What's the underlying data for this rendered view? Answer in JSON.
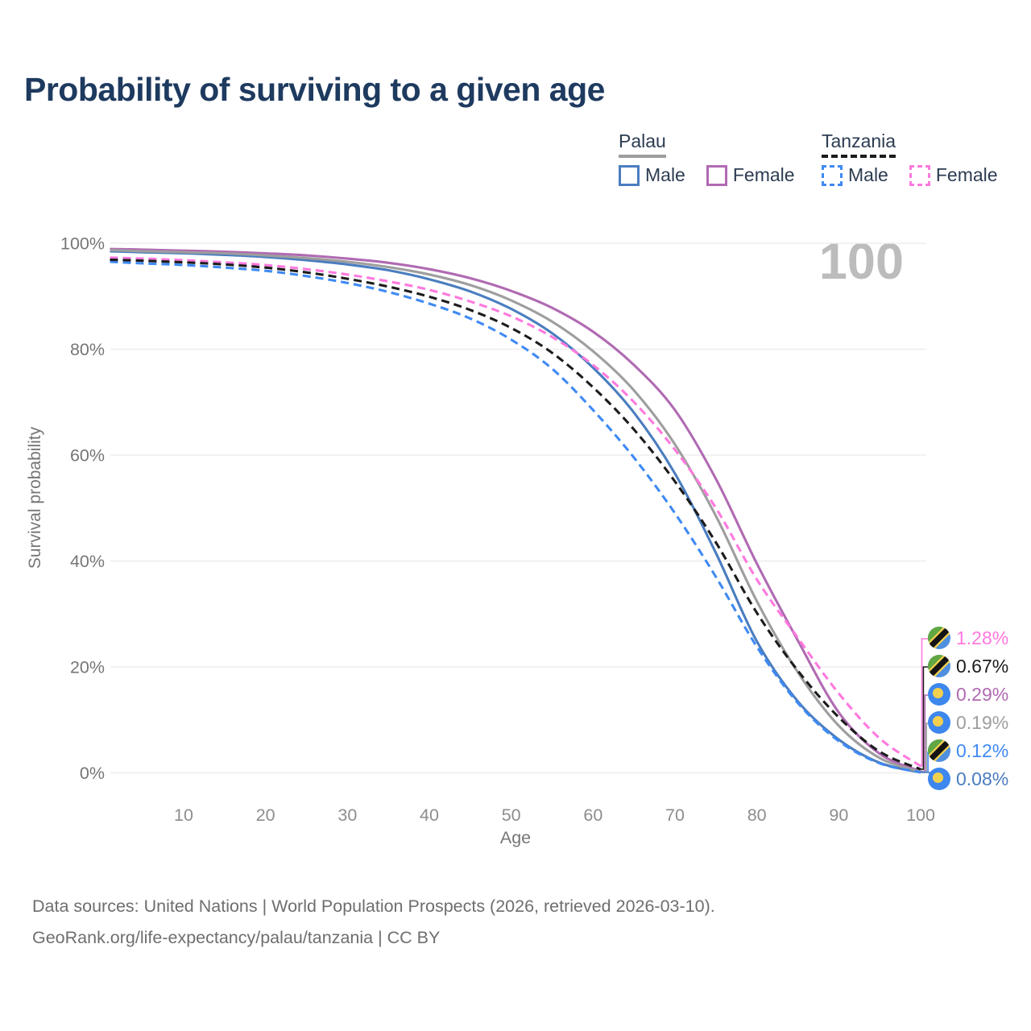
{
  "title": "Probability of surviving to a given age",
  "watermark": "100",
  "legend": {
    "groups": [
      {
        "name": "Palau",
        "line_style": "solid",
        "underline_color": "#9e9e9e",
        "items": [
          {
            "label": "Male",
            "color": "#4a7dbf"
          },
          {
            "label": "Female",
            "color": "#b06ab2"
          }
        ]
      },
      {
        "name": "Tanzania",
        "line_style": "dashed",
        "underline_color": "#1c1c1c",
        "items": [
          {
            "label": "Male",
            "color": "#3f8af3"
          },
          {
            "label": "Female",
            "color": "#ff79de"
          }
        ]
      }
    ]
  },
  "chart_data": {
    "type": "line",
    "title": "Probability of surviving to a given age",
    "xlabel": "Age",
    "ylabel": "Survival probability",
    "xlim": [
      1,
      100
    ],
    "ylim": [
      0,
      100
    ],
    "grid": "horizontal",
    "legend_position": "top-right",
    "xticks": [
      {
        "v": 10,
        "label": "10"
      },
      {
        "v": 20,
        "label": "20"
      },
      {
        "v": 30,
        "label": "30"
      },
      {
        "v": 40,
        "label": "40"
      },
      {
        "v": 50,
        "label": "50"
      },
      {
        "v": 60,
        "label": "60"
      },
      {
        "v": 70,
        "label": "70"
      },
      {
        "v": 80,
        "label": "80"
      },
      {
        "v": 90,
        "label": "90"
      },
      {
        "v": 100,
        "label": "100"
      }
    ],
    "yticks": [
      {
        "v": 0,
        "label": "0%"
      },
      {
        "v": 20,
        "label": "20%"
      },
      {
        "v": 40,
        "label": "40%"
      },
      {
        "v": 60,
        "label": "60%"
      },
      {
        "v": 80,
        "label": "80%"
      },
      {
        "v": 100,
        "label": "100%"
      }
    ],
    "x": [
      1,
      5,
      10,
      15,
      20,
      25,
      30,
      35,
      40,
      45,
      50,
      55,
      60,
      65,
      70,
      75,
      80,
      85,
      90,
      95,
      100
    ],
    "series": [
      {
        "name": "Palau Male",
        "country": "palau",
        "color": "#4a7dbf",
        "dash": false,
        "values": [
          98.5,
          98.3,
          98.1,
          97.8,
          97.4,
          96.8,
          96.0,
          94.9,
          93.2,
          90.9,
          87.6,
          83.0,
          76.5,
          68.0,
          56.5,
          41.5,
          24.8,
          13.5,
          6.3,
          1.9,
          0.08
        ]
      },
      {
        "name": "Palau Female",
        "country": "palau",
        "color": "#b06ab2",
        "dash": false,
        "values": [
          98.9,
          98.8,
          98.6,
          98.4,
          98.1,
          97.7,
          97.1,
          96.3,
          95.1,
          93.4,
          91.0,
          87.8,
          83.3,
          77.0,
          68.5,
          55.5,
          39.5,
          25.0,
          11.4,
          3.6,
          0.29
        ]
      },
      {
        "name": "Palau",
        "country": "palau",
        "color": "#9e9e9e",
        "dash": false,
        "values": [
          98.7,
          98.5,
          98.3,
          98.1,
          97.7,
          97.2,
          96.5,
          95.5,
          94.1,
          92.1,
          89.2,
          85.2,
          79.6,
          72.2,
          62.0,
          48.5,
          32.4,
          19.0,
          8.9,
          2.8,
          0.19
        ]
      },
      {
        "name": "Tanzania Male",
        "country": "tanzania",
        "color": "#3f8af3",
        "dash": true,
        "values": [
          96.5,
          96.2,
          95.9,
          95.4,
          94.8,
          93.8,
          92.5,
          90.8,
          88.6,
          85.8,
          81.8,
          76.3,
          68.5,
          59.5,
          49.0,
          37.0,
          23.8,
          13.2,
          6.0,
          1.8,
          0.12
        ]
      },
      {
        "name": "Tanzania Female",
        "country": "tanzania",
        "color": "#ff79de",
        "dash": true,
        "values": [
          97.3,
          97.1,
          96.8,
          96.4,
          95.9,
          95.1,
          94.1,
          92.8,
          91.2,
          89.0,
          86.2,
          82.3,
          77.0,
          70.0,
          61.0,
          50.0,
          36.5,
          25.5,
          15.0,
          6.5,
          1.28
        ]
      },
      {
        "name": "Tanzania",
        "country": "tanzania",
        "color": "#1c1c1c",
        "dash": true,
        "values": [
          96.9,
          96.7,
          96.4,
          96.0,
          95.4,
          94.5,
          93.3,
          91.8,
          89.9,
          87.4,
          84.0,
          79.3,
          72.8,
          64.8,
          55.0,
          43.5,
          30.2,
          19.3,
          10.5,
          4.0,
          0.67
        ]
      }
    ]
  },
  "end_labels": [
    {
      "value": "1.28%",
      "flag": "tanzania",
      "color": "#ff79de"
    },
    {
      "value": "0.67%",
      "flag": "tanzania",
      "color": "#1c1c1c"
    },
    {
      "value": "0.29%",
      "flag": "palau",
      "color": "#b06ab2"
    },
    {
      "value": "0.19%",
      "flag": "palau",
      "color": "#9e9e9e"
    },
    {
      "value": "0.12%",
      "flag": "tanzania",
      "color": "#3f8af3"
    },
    {
      "value": "0.08%",
      "flag": "palau",
      "color": "#4a7dbf"
    }
  ],
  "footer": {
    "line1": "Data sources: United Nations | World Population Prospects (2026, retrieved 2026-03-10).",
    "line2": "GeoRank.org/life-expectancy/palau/tanzania | CC BY"
  }
}
